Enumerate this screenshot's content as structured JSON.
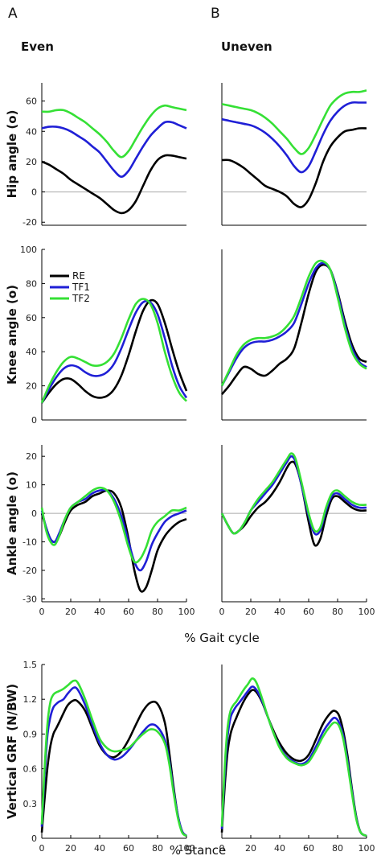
{
  "panel_labels": [
    "A",
    "B"
  ],
  "column_titles": [
    "Even",
    "Uneven"
  ],
  "gait_xlabel": "% Gait cycle",
  "stance_xlabel": "% Stance",
  "colors": {
    "RE": "#000000",
    "TF1": "#1f1fd6",
    "TF2": "#35e035"
  },
  "legend": [
    "RE",
    "TF1",
    "TF2"
  ],
  "chart_data": [
    {
      "type": "line",
      "row": "hip",
      "column": "Even",
      "ylabel": "Hip angle (o)",
      "xlim": [
        0,
        100
      ],
      "ylim": [
        -22,
        72
      ],
      "yticks": [
        -20,
        0,
        20,
        40,
        60
      ],
      "xticks": [],
      "zero_line": true,
      "x": [
        0,
        5,
        10,
        15,
        20,
        25,
        30,
        35,
        40,
        45,
        50,
        55,
        60,
        65,
        70,
        75,
        80,
        85,
        90,
        95,
        100
      ],
      "series": [
        {
          "name": "RE",
          "values": [
            20,
            18,
            15,
            12,
            8,
            5,
            2,
            -1,
            -4,
            -8,
            -12,
            -14,
            -12,
            -6,
            4,
            14,
            21,
            24,
            24,
            23,
            22
          ]
        },
        {
          "name": "TF1",
          "values": [
            42,
            43,
            43,
            42,
            40,
            37,
            34,
            30,
            26,
            20,
            14,
            10,
            14,
            22,
            30,
            37,
            42,
            46,
            46,
            44,
            42
          ]
        },
        {
          "name": "TF2",
          "values": [
            53,
            53,
            54,
            54,
            52,
            49,
            46,
            42,
            38,
            33,
            27,
            23,
            27,
            35,
            43,
            50,
            55,
            57,
            56,
            55,
            54
          ]
        }
      ]
    },
    {
      "type": "line",
      "row": "hip",
      "column": "Uneven",
      "xlim": [
        0,
        100
      ],
      "ylim": [
        -22,
        72
      ],
      "yticks": [],
      "xticks": [],
      "zero_line": true,
      "x": [
        0,
        5,
        10,
        15,
        20,
        25,
        30,
        35,
        40,
        45,
        50,
        55,
        60,
        65,
        70,
        75,
        80,
        85,
        90,
        95,
        100
      ],
      "series": [
        {
          "name": "RE",
          "values": [
            21,
            21,
            19,
            16,
            12,
            8,
            4,
            2,
            0,
            -3,
            -8,
            -10,
            -5,
            6,
            20,
            30,
            36,
            40,
            41,
            42,
            42
          ]
        },
        {
          "name": "TF1",
          "values": [
            48,
            47,
            46,
            45,
            44,
            42,
            39,
            35,
            30,
            24,
            17,
            13,
            17,
            27,
            38,
            47,
            53,
            57,
            59,
            59,
            59
          ]
        },
        {
          "name": "TF2",
          "values": [
            58,
            57,
            56,
            55,
            54,
            52,
            49,
            45,
            40,
            35,
            29,
            25,
            29,
            38,
            48,
            57,
            62,
            65,
            66,
            66,
            67
          ]
        }
      ]
    },
    {
      "type": "line",
      "row": "knee",
      "column": "Even",
      "ylabel": "Knee angle (o)",
      "xlim": [
        0,
        100
      ],
      "ylim": [
        0,
        100
      ],
      "yticks": [
        0,
        20,
        40,
        60,
        80,
        100
      ],
      "xticks": [],
      "zero_line": false,
      "x": [
        0,
        5,
        10,
        15,
        20,
        25,
        30,
        35,
        40,
        45,
        50,
        55,
        60,
        65,
        70,
        75,
        80,
        85,
        90,
        95,
        100
      ],
      "series": [
        {
          "name": "RE",
          "values": [
            10,
            16,
            21,
            24,
            24,
            21,
            17,
            14,
            13,
            14,
            18,
            26,
            38,
            52,
            64,
            70,
            68,
            57,
            42,
            28,
            17
          ]
        },
        {
          "name": "TF1",
          "values": [
            10,
            18,
            25,
            30,
            32,
            31,
            28,
            26,
            26,
            28,
            33,
            42,
            53,
            63,
            69,
            69,
            62,
            48,
            32,
            20,
            13
          ]
        },
        {
          "name": "TF2",
          "values": [
            10,
            20,
            28,
            34,
            37,
            36,
            34,
            32,
            32,
            34,
            39,
            48,
            59,
            68,
            71,
            68,
            57,
            40,
            26,
            16,
            11
          ]
        }
      ]
    },
    {
      "type": "line",
      "row": "knee",
      "column": "Uneven",
      "xlim": [
        0,
        100
      ],
      "ylim": [
        0,
        100
      ],
      "yticks": [],
      "xticks": [],
      "zero_line": false,
      "x": [
        0,
        5,
        10,
        15,
        20,
        25,
        30,
        35,
        40,
        45,
        50,
        55,
        60,
        65,
        70,
        75,
        80,
        85,
        90,
        95,
        100
      ],
      "series": [
        {
          "name": "RE",
          "values": [
            15,
            20,
            26,
            31,
            30,
            27,
            26,
            29,
            33,
            36,
            42,
            57,
            74,
            87,
            91,
            88,
            75,
            58,
            44,
            36,
            34
          ]
        },
        {
          "name": "TF1",
          "values": [
            20,
            28,
            36,
            42,
            45,
            46,
            46,
            47,
            49,
            52,
            57,
            68,
            80,
            89,
            92,
            88,
            74,
            56,
            42,
            34,
            31
          ]
        },
        {
          "name": "TF2",
          "values": [
            20,
            29,
            38,
            44,
            47,
            48,
            48,
            49,
            51,
            55,
            61,
            72,
            84,
            92,
            93,
            88,
            72,
            54,
            40,
            33,
            30
          ]
        }
      ]
    },
    {
      "type": "line",
      "row": "ankle",
      "column": "Even",
      "ylabel": "Ankle angle (o)",
      "xlim": [
        0,
        100
      ],
      "ylim": [
        -31,
        24
      ],
      "yticks": [
        -30,
        -20,
        -10,
        0,
        10,
        20
      ],
      "xticks": [
        0,
        20,
        40,
        60,
        80,
        100
      ],
      "zero_line": true,
      "x": [
        0,
        3,
        6,
        9,
        12,
        16,
        20,
        25,
        30,
        35,
        40,
        45,
        50,
        55,
        60,
        64,
        68,
        72,
        76,
        80,
        85,
        90,
        95,
        100
      ],
      "series": [
        {
          "name": "RE",
          "values": [
            0,
            -5,
            -9,
            -10,
            -8,
            -3,
            1,
            3,
            4,
            6,
            7,
            8,
            7,
            2,
            -9,
            -20,
            -27,
            -26,
            -20,
            -13,
            -8,
            -5,
            -3,
            -2
          ]
        },
        {
          "name": "TF1",
          "values": [
            1,
            -5,
            -9,
            -10,
            -7,
            -2,
            2,
            4,
            5,
            7,
            8,
            8,
            5,
            -1,
            -10,
            -17,
            -20,
            -17,
            -11,
            -7,
            -3,
            -1,
            0,
            1
          ]
        },
        {
          "name": "TF2",
          "values": [
            2,
            -6,
            -10,
            -11,
            -8,
            -2,
            2,
            4,
            6,
            8,
            9,
            8,
            4,
            -3,
            -12,
            -17,
            -16,
            -12,
            -6,
            -3,
            -1,
            1,
            1,
            2
          ]
        }
      ]
    },
    {
      "type": "line",
      "row": "ankle",
      "column": "Uneven",
      "xlim": [
        0,
        100
      ],
      "ylim": [
        -31,
        24
      ],
      "yticks": [],
      "xticks": [
        0,
        20,
        40,
        60,
        80,
        100
      ],
      "zero_line": true,
      "x": [
        0,
        4,
        8,
        12,
        16,
        20,
        25,
        30,
        35,
        40,
        45,
        48,
        51,
        55,
        60,
        64,
        68,
        72,
        76,
        80,
        85,
        90,
        95,
        100
      ],
      "series": [
        {
          "name": "RE",
          "values": [
            0,
            -4,
            -7,
            -6,
            -4,
            -1,
            2,
            4,
            7,
            11,
            16,
            18,
            17,
            10,
            -3,
            -11,
            -9,
            -1,
            5,
            6,
            4,
            2,
            1,
            1
          ]
        },
        {
          "name": "TF1",
          "values": [
            0,
            -4,
            -7,
            -6,
            -3,
            1,
            4,
            7,
            10,
            14,
            18,
            20,
            18,
            10,
            -1,
            -7,
            -6,
            1,
            6,
            7,
            5,
            3,
            2,
            2
          ]
        },
        {
          "name": "TF2",
          "values": [
            0,
            -4,
            -7,
            -6,
            -3,
            1,
            5,
            8,
            11,
            15,
            19,
            21,
            19,
            11,
            0,
            -6,
            -5,
            2,
            7,
            8,
            6,
            4,
            3,
            3
          ]
        }
      ]
    },
    {
      "type": "line",
      "row": "grf",
      "column": "Even",
      "ylabel": "Vertical GRF (N/BW)",
      "xlim": [
        0,
        100
      ],
      "ylim": [
        0,
        1.5
      ],
      "yticks": [
        0,
        0.3,
        0.6,
        0.9,
        1.2,
        1.5
      ],
      "xticks": [
        0,
        20,
        40,
        60,
        80,
        100
      ],
      "zero_line": false,
      "x": [
        0,
        2,
        4,
        6,
        8,
        10,
        12,
        15,
        18,
        22,
        25,
        30,
        35,
        40,
        45,
        50,
        55,
        60,
        65,
        70,
        75,
        80,
        85,
        88,
        91,
        94,
        97,
        100
      ],
      "series": [
        {
          "name": "RE",
          "values": [
            0.05,
            0.35,
            0.62,
            0.8,
            0.9,
            0.95,
            1.0,
            1.08,
            1.15,
            1.19,
            1.18,
            1.1,
            0.95,
            0.8,
            0.72,
            0.7,
            0.75,
            0.85,
            0.98,
            1.1,
            1.17,
            1.16,
            1.0,
            0.75,
            0.45,
            0.2,
            0.06,
            0.02
          ]
        },
        {
          "name": "TF1",
          "values": [
            0.1,
            0.55,
            0.9,
            1.05,
            1.13,
            1.16,
            1.18,
            1.2,
            1.25,
            1.3,
            1.28,
            1.15,
            0.98,
            0.82,
            0.72,
            0.68,
            0.7,
            0.76,
            0.84,
            0.92,
            0.98,
            0.96,
            0.85,
            0.68,
            0.42,
            0.2,
            0.06,
            0.02
          ]
        },
        {
          "name": "TF2",
          "values": [
            0.12,
            0.62,
            1.0,
            1.18,
            1.24,
            1.26,
            1.27,
            1.29,
            1.32,
            1.36,
            1.34,
            1.2,
            1.02,
            0.86,
            0.78,
            0.75,
            0.76,
            0.78,
            0.84,
            0.9,
            0.94,
            0.92,
            0.82,
            0.65,
            0.4,
            0.18,
            0.05,
            0.02
          ]
        }
      ]
    },
    {
      "type": "line",
      "row": "grf",
      "column": "Uneven",
      "xlim": [
        0,
        100
      ],
      "ylim": [
        0,
        1.5
      ],
      "yticks": [],
      "xticks": [
        0,
        20,
        40,
        60,
        80,
        100
      ],
      "zero_line": false,
      "x": [
        0,
        2,
        4,
        6,
        8,
        10,
        12,
        15,
        18,
        21,
        24,
        28,
        32,
        36,
        40,
        45,
        50,
        55,
        60,
        65,
        70,
        75,
        78,
        81,
        84,
        87,
        90,
        93,
        96,
        100
      ],
      "series": [
        {
          "name": "RE",
          "values": [
            0.05,
            0.45,
            0.75,
            0.9,
            0.98,
            1.04,
            1.1,
            1.18,
            1.24,
            1.28,
            1.26,
            1.17,
            1.04,
            0.92,
            0.82,
            0.73,
            0.68,
            0.67,
            0.72,
            0.85,
            0.99,
            1.08,
            1.1,
            1.06,
            0.92,
            0.7,
            0.42,
            0.18,
            0.05,
            0.02
          ]
        },
        {
          "name": "TF1",
          "values": [
            0.08,
            0.55,
            0.88,
            1.04,
            1.1,
            1.14,
            1.17,
            1.22,
            1.27,
            1.31,
            1.28,
            1.18,
            1.04,
            0.9,
            0.79,
            0.7,
            0.66,
            0.64,
            0.68,
            0.79,
            0.92,
            1.01,
            1.04,
            1.0,
            0.88,
            0.66,
            0.4,
            0.17,
            0.05,
            0.02
          ]
        },
        {
          "name": "TF2",
          "values": [
            0.1,
            0.62,
            0.96,
            1.1,
            1.15,
            1.18,
            1.22,
            1.28,
            1.33,
            1.38,
            1.34,
            1.2,
            1.04,
            0.9,
            0.78,
            0.69,
            0.65,
            0.63,
            0.66,
            0.76,
            0.88,
            0.97,
            1.0,
            0.97,
            0.85,
            0.63,
            0.38,
            0.16,
            0.05,
            0.02
          ]
        }
      ]
    }
  ]
}
